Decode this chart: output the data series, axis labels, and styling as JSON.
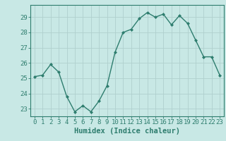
{
  "xlabel": "Humidex (Indice chaleur)",
  "x": [
    0,
    1,
    2,
    3,
    4,
    5,
    6,
    7,
    8,
    9,
    10,
    11,
    12,
    13,
    14,
    15,
    16,
    17,
    18,
    19,
    20,
    21,
    22,
    23
  ],
  "y": [
    25.1,
    25.2,
    25.9,
    25.4,
    23.8,
    22.8,
    23.2,
    22.8,
    23.5,
    24.5,
    26.7,
    28.0,
    28.2,
    28.9,
    29.3,
    29.0,
    29.2,
    28.5,
    29.1,
    28.6,
    27.5,
    26.4,
    26.4,
    25.2
  ],
  "line_color": "#2e7d6e",
  "marker": "D",
  "marker_size": 2.0,
  "bg_color": "#c8e8e5",
  "grid_color": "#b0d0ce",
  "ylim": [
    22.5,
    29.8
  ],
  "yticks": [
    23,
    24,
    25,
    26,
    27,
    28,
    29
  ],
  "xticks": [
    0,
    1,
    2,
    3,
    4,
    5,
    6,
    7,
    8,
    9,
    10,
    11,
    12,
    13,
    14,
    15,
    16,
    17,
    18,
    19,
    20,
    21,
    22,
    23
  ],
  "xlabel_fontsize": 7.5,
  "tick_fontsize": 6.5,
  "linewidth": 1.0
}
